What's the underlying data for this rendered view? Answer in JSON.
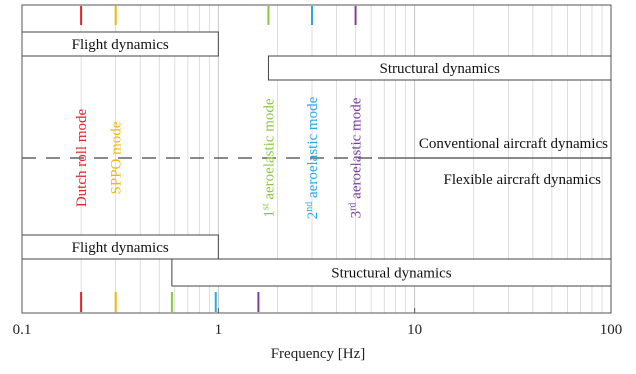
{
  "axis": {
    "xlabel": "Frequency [Hz]",
    "scale": "log",
    "xlim": [
      0.1,
      100
    ],
    "tick_labels": [
      "0.1",
      "1",
      "10",
      "100"
    ],
    "minor_grid": true
  },
  "divider": {
    "upper_label": "Conventional aircraft dynamics",
    "lower_label": "Flexible aircraft dynamics"
  },
  "modes": [
    {
      "name": "Dutch roll mode",
      "sup": "",
      "color": "#e8202a",
      "top_freq": 0.2,
      "bottom_freq": 0.2
    },
    {
      "name": "SPPO mode",
      "sup": "",
      "color": "#f5b800",
      "top_freq": 0.3,
      "bottom_freq": 0.3
    },
    {
      "name": "1",
      "sup": "st",
      "rest": " aeroelastic mode",
      "color": "#8cc63f",
      "top_freq": 1.8,
      "bottom_freq": 0.58
    },
    {
      "name": "2",
      "sup": "nd",
      "rest": " aeroelastic mode",
      "color": "#29abe2",
      "top_freq": 3.0,
      "bottom_freq": 0.97
    },
    {
      "name": "3",
      "sup": "rd",
      "rest": " aeroelastic mode",
      "color": "#7b3fa0",
      "top_freq": 5.0,
      "bottom_freq": 1.6
    }
  ],
  "regions_top": [
    {
      "label": "Flight dynamics",
      "from": 0.1,
      "to": 1.0
    },
    {
      "label": "Structural dynamics",
      "from": 1.8,
      "to": 100
    }
  ],
  "regions_bottom": [
    {
      "label": "Flight dynamics",
      "from": 0.1,
      "to": 1.0
    },
    {
      "label": "Structural dynamics",
      "from": 0.58,
      "to": 100
    }
  ],
  "colors": {
    "frame": "#555555",
    "grid": "#cfcfcf",
    "background": "#ffffff"
  }
}
